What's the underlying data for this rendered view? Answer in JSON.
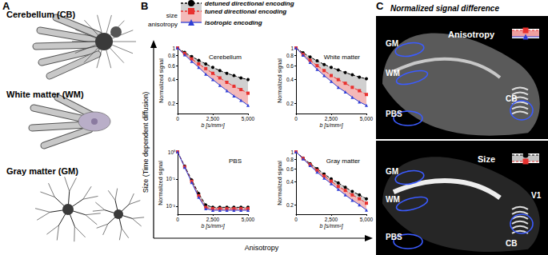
{
  "panel_a": {
    "label": "A",
    "cells": [
      {
        "label": "Cerebellum (CB)"
      },
      {
        "label": "White matter (WM)"
      },
      {
        "label": "Gray matter (GM)"
      }
    ]
  },
  "panel_b": {
    "label": "B",
    "legend_axes": [
      "size",
      "anisotropy"
    ],
    "x_arrow_label": "Anisotropy",
    "y_arrow_label": "Size (Time dependent diffusion)"
  },
  "chart_data": [
    {
      "type": "line",
      "title": "Cerebellum",
      "x_label": "b [s/mm²]",
      "y_label": "Normalized signal",
      "log": "y",
      "x": [
        0,
        500,
        1000,
        1500,
        2000,
        2500,
        3000,
        3500,
        4000,
        4500,
        5000
      ],
      "xlim": [
        0,
        5000
      ],
      "xticks": [
        0,
        2500,
        5000
      ],
      "ylim": [
        0.15,
        1
      ],
      "yticks": [
        0.2,
        0.4,
        0.6,
        0.8,
        1
      ],
      "series": [
        {
          "name": "detuned directional encoding",
          "color": "#000000",
          "marker": "circle",
          "line_style": "dashed",
          "values": [
            1,
            0.88,
            0.78,
            0.7,
            0.63,
            0.57,
            0.52,
            0.48,
            0.45,
            0.42,
            0.4
          ]
        },
        {
          "name": "tuned directional encoding",
          "color": "#e8312f",
          "marker": "square",
          "line_style": "dashed",
          "values": [
            1,
            0.85,
            0.73,
            0.63,
            0.55,
            0.48,
            0.42,
            0.37,
            0.33,
            0.3,
            0.27
          ]
        },
        {
          "name": "isotropic encoding",
          "color": "#2f3fd6",
          "marker": "triangle",
          "line_style": "solid",
          "values": [
            1,
            0.82,
            0.68,
            0.57,
            0.47,
            0.4,
            0.34,
            0.29,
            0.25,
            0.22,
            0.19
          ]
        }
      ]
    },
    {
      "type": "line",
      "title": "White matter",
      "x_label": "b [s/mm²]",
      "y_label": "Normalized signal",
      "log": "y",
      "x": [
        0,
        500,
        1000,
        1500,
        2000,
        2500,
        3000,
        3500,
        4000,
        4500,
        5000
      ],
      "xlim": [
        0,
        5000
      ],
      "xticks": [
        0,
        2500,
        5000
      ],
      "ylim": [
        0.15,
        1
      ],
      "yticks": [
        0.2,
        0.4,
        0.6,
        0.8,
        1
      ],
      "series": [
        {
          "name": "detuned directional encoding",
          "color": "#000000",
          "marker": "circle",
          "line_style": "dashed",
          "values": [
            1,
            0.87,
            0.77,
            0.69,
            0.62,
            0.57,
            0.53,
            0.49,
            0.46,
            0.43,
            0.41
          ]
        },
        {
          "name": "tuned directional encoding",
          "color": "#e8312f",
          "marker": "square",
          "line_style": "dashed",
          "values": [
            1,
            0.83,
            0.7,
            0.6,
            0.52,
            0.45,
            0.4,
            0.36,
            0.32,
            0.29,
            0.26
          ]
        },
        {
          "name": "isotropic encoding",
          "color": "#2f3fd6",
          "marker": "triangle",
          "line_style": "solid",
          "values": [
            1,
            0.81,
            0.66,
            0.54,
            0.45,
            0.38,
            0.32,
            0.28,
            0.24,
            0.21,
            0.19
          ]
        }
      ]
    },
    {
      "type": "line",
      "title": "PBS",
      "x_label": "b [s/mm²]",
      "y_label": "Normalized signal",
      "log": "y",
      "x": [
        0,
        500,
        1000,
        1500,
        2000,
        2500,
        3000,
        3500,
        4000,
        4500,
        5000
      ],
      "xlim": [
        0,
        5000
      ],
      "xticks": [
        0,
        2500,
        5000
      ],
      "ylim": [
        0.005,
        1
      ],
      "yticks": [
        {
          "value": 0.01,
          "label": "10⁻²"
        },
        {
          "value": 0.1,
          "label": "10⁻¹"
        },
        {
          "value": 1,
          "label": "10⁰"
        }
      ],
      "series": [
        {
          "name": "detuned directional encoding",
          "color": "#000000",
          "marker": "circle",
          "line_style": "dashed",
          "values": [
            1,
            0.3,
            0.092,
            0.029,
            0.011,
            0.009,
            0.009,
            0.009,
            0.009,
            0.009,
            0.009
          ]
        },
        {
          "name": "tuned directional encoding",
          "color": "#e8312f",
          "marker": "square",
          "line_style": "dashed",
          "values": [
            1,
            0.28,
            0.082,
            0.024,
            0.009,
            0.008,
            0.008,
            0.008,
            0.008,
            0.008,
            0.008
          ]
        },
        {
          "name": "isotropic encoding",
          "color": "#2f3fd6",
          "marker": "triangle",
          "line_style": "solid",
          "values": [
            1,
            0.27,
            0.075,
            0.021,
            0.008,
            0.007,
            0.007,
            0.007,
            0.007,
            0.007,
            0.007
          ]
        }
      ]
    },
    {
      "type": "line",
      "title": "Gray matter",
      "x_label": "b [s/mm²]",
      "y_label": "Normalized signal",
      "log": "y",
      "x": [
        0,
        500,
        1000,
        1500,
        2000,
        2500,
        3000,
        3500,
        4000,
        4500,
        5000
      ],
      "xlim": [
        0,
        5000
      ],
      "xticks": [
        0,
        2500,
        5000
      ],
      "ylim": [
        0.15,
        1
      ],
      "yticks": [
        0.2,
        0.4,
        0.6,
        0.8,
        1
      ],
      "series": [
        {
          "name": "detuned directional encoding",
          "color": "#000000",
          "marker": "circle",
          "line_style": "dashed",
          "values": [
            1,
            0.83,
            0.7,
            0.6,
            0.51,
            0.44,
            0.39,
            0.34,
            0.3,
            0.27,
            0.24
          ]
        },
        {
          "name": "tuned directional encoding",
          "color": "#e8312f",
          "marker": "square",
          "line_style": "dashed",
          "values": [
            1,
            0.82,
            0.68,
            0.57,
            0.48,
            0.41,
            0.35,
            0.31,
            0.27,
            0.24,
            0.21
          ]
        },
        {
          "name": "isotropic encoding",
          "color": "#2f3fd6",
          "marker": "triangle",
          "line_style": "solid",
          "values": [
            1,
            0.81,
            0.66,
            0.54,
            0.45,
            0.38,
            0.32,
            0.27,
            0.23,
            0.2,
            0.17
          ]
        }
      ]
    }
  ],
  "panel_c": {
    "label": "C",
    "title": "Normalized signal difference",
    "images": [
      {
        "label": "Anisotropy",
        "regions": [
          "GM",
          "WM",
          "CB",
          "PBS"
        ]
      },
      {
        "label": "Size",
        "regions": [
          "GM",
          "WM",
          "PBS",
          "CB",
          "V1"
        ]
      }
    ]
  }
}
